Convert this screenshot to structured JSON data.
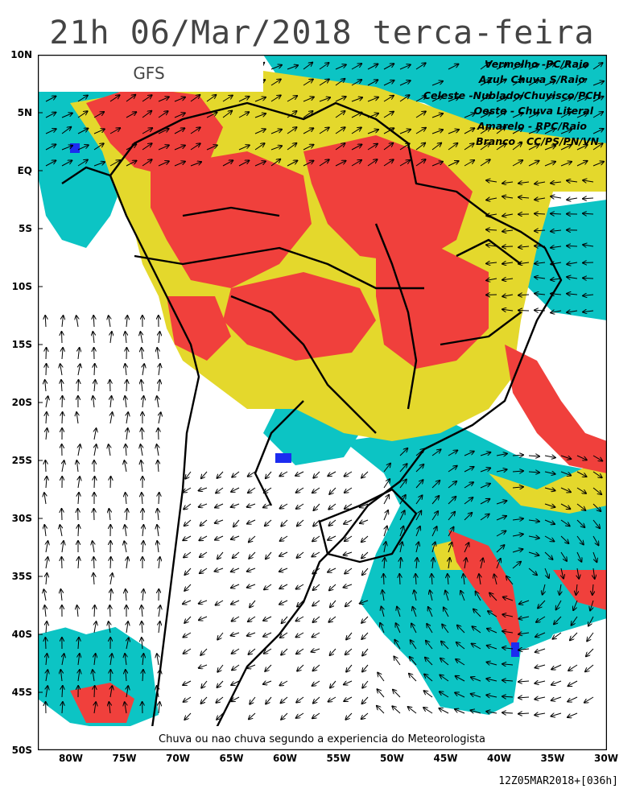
{
  "title": "21h 06/Mar/2018 terca-feira",
  "model": "GFS",
  "legend": [
    "Vermelho -PC/Raio",
    "Azul- Chuva S/Raio",
    "Celeste -Nublado/Chuvisco/PCH",
    "Oeste - Chuva Literal",
    "Amarelo - RPC/Raio",
    "Branco - CC/PS/PN/VN"
  ],
  "footer_note": "Chuva ou nao chuva segundo a experiencia do Meteorologista",
  "run_info": "12Z05MAR2018+[036h]",
  "lat_labels": [
    "10N",
    "5N",
    "EQ",
    "5S",
    "10S",
    "15S",
    "20S",
    "25S",
    "30S",
    "35S",
    "40S",
    "45S",
    "50S"
  ],
  "lon_labels": [
    "80W",
    "75W",
    "70W",
    "65W",
    "60W",
    "55W",
    "50W",
    "45W",
    "40W",
    "35W",
    "30W"
  ],
  "colors": {
    "red": "#f0403c",
    "yellow": "#e4d82c",
    "cyan": "#0cc4c4",
    "blue": "#1c2cf0",
    "white": "#ffffff",
    "border": "#000000"
  }
}
